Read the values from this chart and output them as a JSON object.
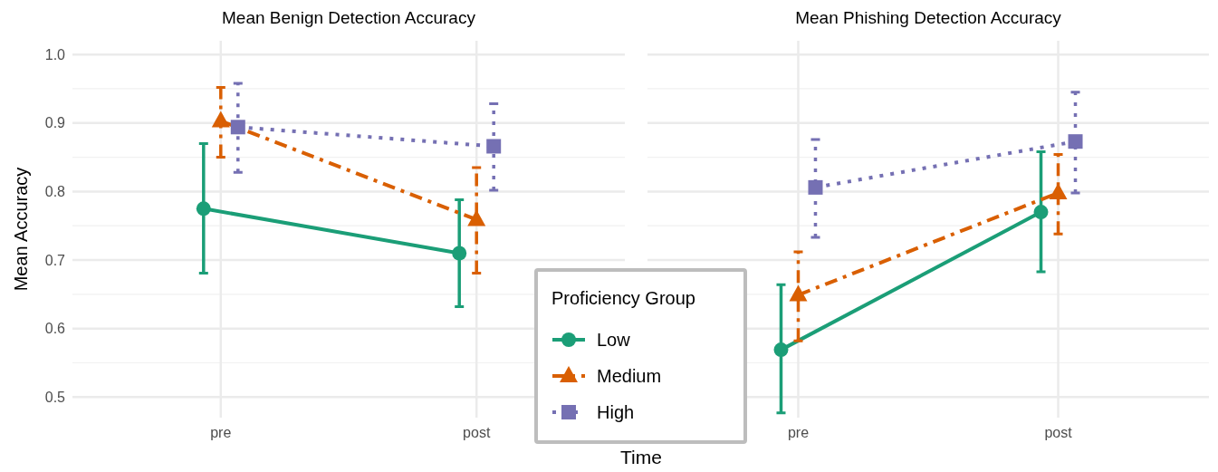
{
  "chart_data": [
    {
      "type": "line",
      "title": "Mean Benign Detection Accuracy",
      "xlabel": "Time",
      "ylabel": "Mean Accuracy",
      "legend_title": "Proficiency Group",
      "legend": "bottom right",
      "categories": [
        "pre",
        "post"
      ],
      "ylim": [
        0.47,
        1.02
      ],
      "yticks": [
        0.5,
        0.6,
        0.7,
        0.8,
        0.9,
        {
          "value": 1.0,
          "label": "1.0"
        }
      ],
      "grid": true,
      "series": [
        {
          "name": "Low",
          "color": "#1b9e77",
          "marker": "circle",
          "line_style": "solid",
          "values": [
            0.775,
            0.71
          ],
          "errors": [
            [
              0.681,
              0.87
            ],
            [
              0.632,
              0.788
            ]
          ]
        },
        {
          "name": "Medium",
          "color": "#d95f02",
          "marker": "triangle",
          "line_style": "dashed",
          "values": [
            0.903,
            0.759
          ],
          "errors": [
            [
              0.85,
              0.952
            ],
            [
              0.681,
              0.835
            ]
          ]
        },
        {
          "name": "High",
          "color": "#7570b3",
          "marker": "square",
          "line_style": "dotted",
          "values": [
            0.894,
            0.866
          ],
          "errors": [
            [
              0.828,
              0.958
            ],
            [
              0.802,
              0.928
            ]
          ]
        }
      ]
    },
    {
      "type": "line",
      "title": "Mean Phishing Detection Accuracy",
      "categories": [
        "pre",
        "post"
      ],
      "ylim": [
        0.47,
        1.02
      ],
      "yticks": [
        0.5,
        0.6,
        0.7,
        0.8,
        0.9,
        1
      ],
      "grid": true,
      "tick_labels": "x",
      "series": [
        {
          "color": "#1b9e77",
          "marker": "circle",
          "line_style": "solid",
          "values": [
            0.569,
            0.77
          ],
          "errors": [
            [
              0.477,
              0.664
            ],
            [
              0.683,
              0.858
            ]
          ]
        },
        {
          "color": "#d95f02",
          "marker": "triangle",
          "line_style": "dashed",
          "values": [
            0.649,
            0.798
          ],
          "errors": [
            [
              0.582,
              0.712
            ],
            [
              0.738,
              0.854
            ]
          ]
        },
        {
          "color": "#7570b3",
          "marker": "square",
          "line_style": "dotted",
          "values": [
            0.806,
            0.873
          ],
          "errors": [
            [
              0.733,
              0.876
            ],
            [
              0.798,
              0.945
            ]
          ]
        }
      ]
    }
  ]
}
